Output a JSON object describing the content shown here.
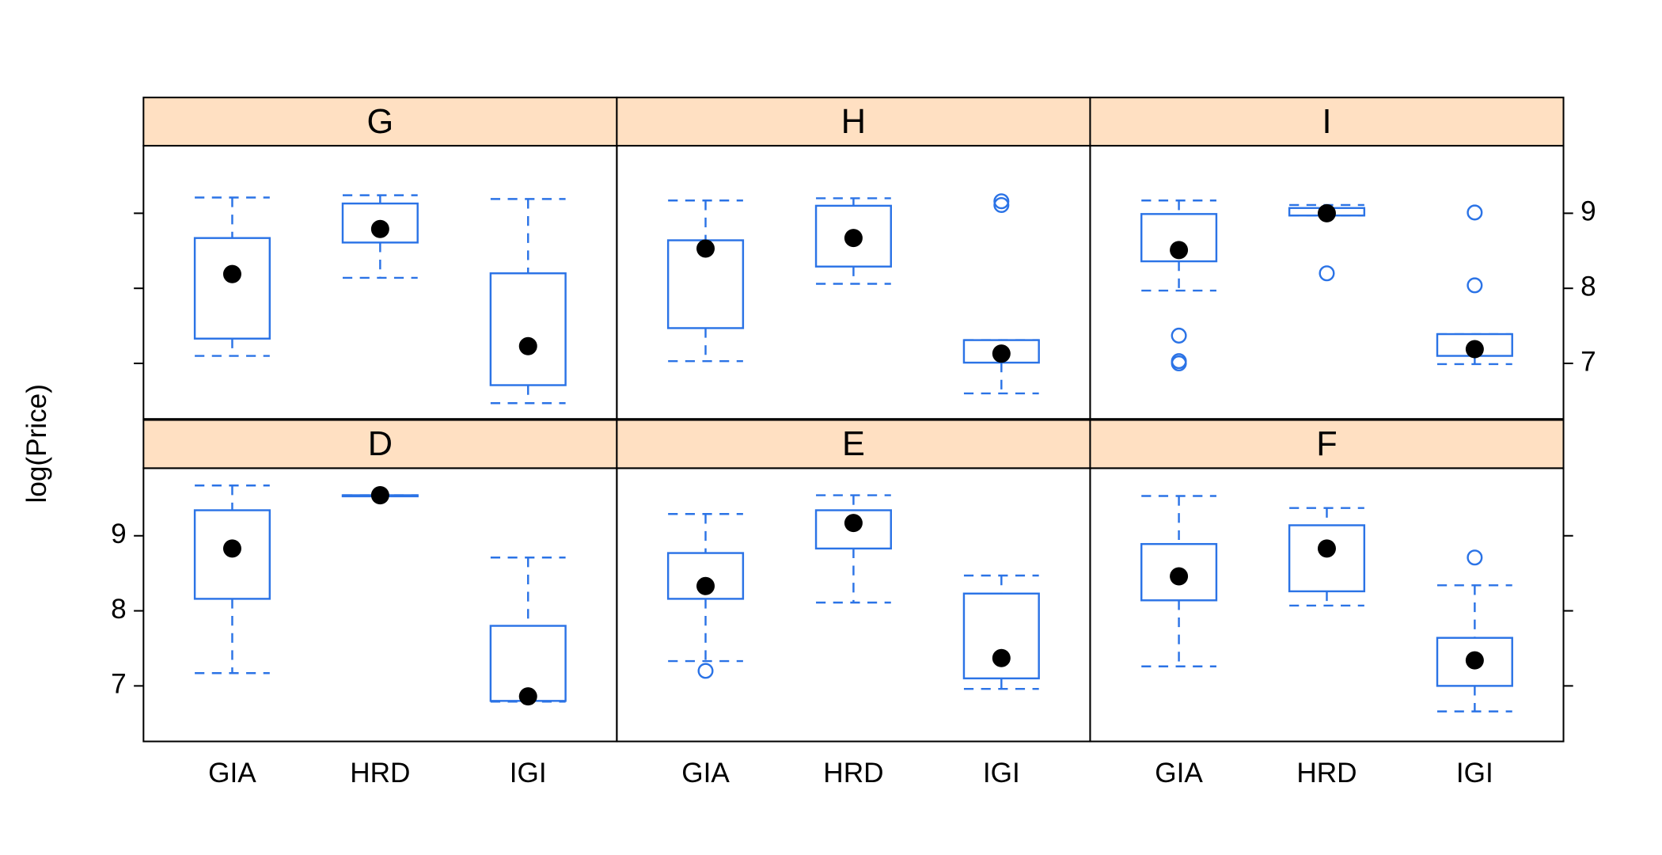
{
  "chart_data": {
    "type": "box",
    "ylabel": "log(Price)",
    "categories": [
      "GIA",
      "HRD",
      "IGI"
    ],
    "xlim": [
      0.4,
      3.6
    ],
    "ylim": [
      6.26,
      9.9
    ],
    "yticks": [
      7,
      8,
      9
    ],
    "color": "#2b73e6",
    "strip_color": "#ffe0c2",
    "layout_columns": 3,
    "panels": [
      {
        "strip": "G",
        "boxes": [
          {
            "min": 7.1,
            "q1": 7.33,
            "median": 8.19,
            "q3": 8.67,
            "max": 9.21,
            "outliers": []
          },
          {
            "min": 8.14,
            "q1": 8.61,
            "median": 8.79,
            "q3": 9.13,
            "max": 9.24,
            "outliers": []
          },
          {
            "min": 6.47,
            "q1": 6.71,
            "median": 7.23,
            "q3": 8.2,
            "max": 9.19,
            "outliers": []
          }
        ]
      },
      {
        "strip": "H",
        "boxes": [
          {
            "min": 7.03,
            "q1": 7.47,
            "median": 8.53,
            "q3": 8.64,
            "max": 9.17,
            "outliers": []
          },
          {
            "min": 8.06,
            "q1": 8.29,
            "median": 8.67,
            "q3": 9.1,
            "max": 9.2,
            "outliers": []
          },
          {
            "min": 6.6,
            "q1": 7.01,
            "median": 7.13,
            "q3": 7.31,
            "max": 7.31,
            "outliers": [
              9.16,
              9.11
            ]
          }
        ]
      },
      {
        "strip": "I",
        "boxes": [
          {
            "min": 7.97,
            "q1": 8.36,
            "median": 8.51,
            "q3": 8.99,
            "max": 9.17,
            "outliers": [
              7.37,
              7.03,
              7.0
            ]
          },
          {
            "min": 8.97,
            "q1": 8.97,
            "median": 9.0,
            "q3": 9.07,
            "max": 9.11,
            "outliers": [
              8.2
            ]
          },
          {
            "min": 6.99,
            "q1": 7.1,
            "median": 7.19,
            "q3": 7.39,
            "max": 7.39,
            "outliers": [
              9.01,
              8.04
            ]
          }
        ]
      },
      {
        "strip": "D",
        "boxes": [
          {
            "min": 7.17,
            "q1": 8.16,
            "median": 8.83,
            "q3": 9.34,
            "max": 9.67,
            "outliers": []
          },
          {
            "min": 9.53,
            "q1": 9.53,
            "median": 9.54,
            "q3": 9.54,
            "max": 9.54,
            "outliers": []
          },
          {
            "min": 6.79,
            "q1": 6.8,
            "median": 6.86,
            "q3": 7.8,
            "max": 8.71,
            "outliers": []
          }
        ]
      },
      {
        "strip": "E",
        "boxes": [
          {
            "min": 7.33,
            "q1": 8.16,
            "median": 8.33,
            "q3": 8.77,
            "max": 9.29,
            "outliers": [
              7.2
            ]
          },
          {
            "min": 8.11,
            "q1": 8.83,
            "median": 9.17,
            "q3": 9.34,
            "max": 9.54,
            "outliers": []
          },
          {
            "min": 6.96,
            "q1": 7.1,
            "median": 7.37,
            "q3": 8.23,
            "max": 8.47,
            "outliers": []
          }
        ]
      },
      {
        "strip": "F",
        "boxes": [
          {
            "min": 7.26,
            "q1": 8.14,
            "median": 8.46,
            "q3": 8.89,
            "max": 9.53,
            "outliers": []
          },
          {
            "min": 8.07,
            "q1": 8.26,
            "median": 8.83,
            "q3": 9.14,
            "max": 9.37,
            "outliers": []
          },
          {
            "min": 6.66,
            "q1": 7.0,
            "median": 7.34,
            "q3": 7.64,
            "max": 8.34,
            "outliers": [
              8.71
            ]
          }
        ]
      }
    ]
  }
}
